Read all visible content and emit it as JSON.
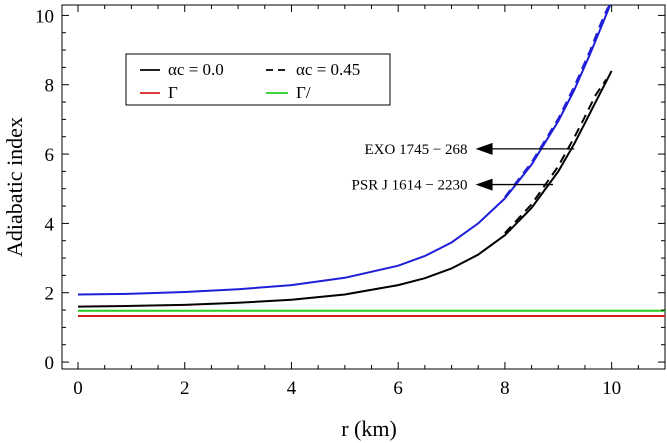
{
  "chart_data": {
    "type": "line",
    "xlabel": "r (km)",
    "ylabel": "Adiabatic index",
    "xlim": [
      -0.3,
      11.0
    ],
    "ylim": [
      -0.2,
      10.3
    ],
    "xticks": [
      0,
      2,
      4,
      6,
      8,
      10
    ],
    "yticks": [
      0,
      2,
      4,
      6,
      8,
      10
    ],
    "grid": false,
    "legend_position": "top-left",
    "legend": [
      {
        "key": "solid",
        "text": "αc = 0.0",
        "style": "solid",
        "color": "#000000"
      },
      {
        "key": "dashed",
        "text": "αc = 0.45",
        "style": "dashed",
        "color": "#000000"
      },
      {
        "key": "gamma",
        "text": "Γ",
        "style": "solid",
        "color": "#d62020"
      },
      {
        "key": "gammaprime",
        "text": "Γ/",
        "style": "solid",
        "color": "#22cc22"
      }
    ],
    "series": [
      {
        "style": "solid",
        "color": "#1f1fd8",
        "width": 2,
        "x": [
          0,
          1,
          2,
          3,
          4,
          5,
          6,
          6.5,
          7,
          7.5,
          8,
          8.5,
          9,
          9.3,
          9.6,
          9.8,
          10.0
        ],
        "y": [
          1.95,
          1.97,
          2.02,
          2.1,
          2.22,
          2.43,
          2.78,
          3.06,
          3.45,
          4.0,
          4.72,
          5.7,
          6.95,
          7.85,
          8.9,
          9.65,
          10.4
        ]
      },
      {
        "style": "dashed",
        "color": "#1f1fd8",
        "width": 2,
        "x": [
          8,
          8.5,
          9,
          9.3,
          9.6,
          9.8,
          9.92,
          10.02
        ],
        "y": [
          4.76,
          5.76,
          7.02,
          7.95,
          9.0,
          9.78,
          10.2,
          10.4
        ]
      },
      {
        "style": "solid",
        "color": "#000000",
        "width": 2,
        "x": [
          0,
          1,
          2,
          3,
          4,
          5,
          6,
          6.5,
          7,
          7.5,
          8,
          8.5,
          9,
          9.3,
          9.5,
          9.7,
          9.9,
          10.0
        ],
        "y": [
          1.6,
          1.62,
          1.65,
          1.71,
          1.8,
          1.95,
          2.22,
          2.42,
          2.7,
          3.1,
          3.66,
          4.45,
          5.5,
          6.3,
          6.9,
          7.5,
          8.1,
          8.4
        ]
      },
      {
        "style": "dashed",
        "color": "#000000",
        "width": 2,
        "x": [
          8,
          8.5,
          9,
          9.3,
          9.5,
          9.7,
          9.9
        ],
        "y": [
          3.72,
          4.55,
          5.65,
          6.48,
          7.08,
          7.7,
          8.15
        ]
      },
      {
        "style": "solid",
        "color": "#d62020",
        "width": 2,
        "x": [
          0,
          11.0
        ],
        "y": [
          1.33,
          1.33
        ]
      },
      {
        "style": "solid",
        "color": "#22cc22",
        "width": 2,
        "x": [
          0,
          11.0
        ],
        "y": [
          1.48,
          1.48
        ]
      }
    ],
    "annotations": [
      {
        "text": "EXO 1745 − 268",
        "text_x": 7.45,
        "text_y": 6.15,
        "arrow_from": [
          9.3,
          6.15
        ],
        "arrow_to": [
          7.45,
          6.15
        ]
      },
      {
        "text": "PSR J 1614 − 2230",
        "text_x": 7.45,
        "text_y": 5.12,
        "arrow_from": [
          8.9,
          5.12
        ],
        "arrow_to": [
          7.45,
          5.12
        ]
      }
    ]
  }
}
